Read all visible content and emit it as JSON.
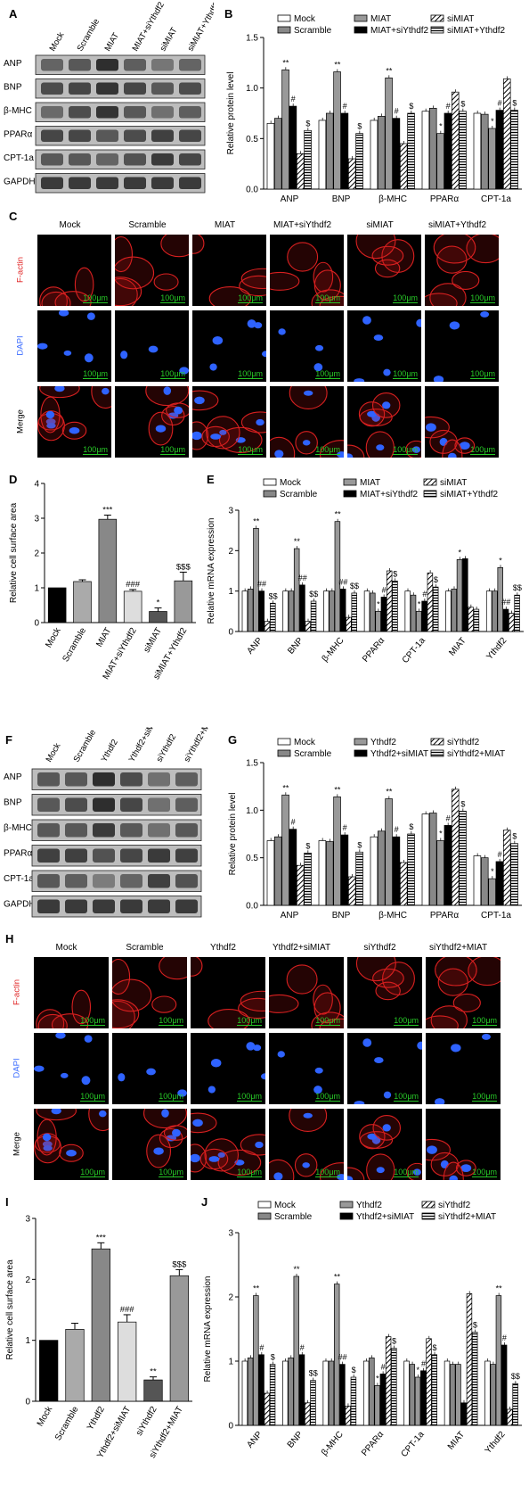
{
  "panels": {
    "A": "A",
    "B": "B",
    "C": "C",
    "D": "D",
    "E": "E",
    "F": "F",
    "G": "G",
    "H": "H",
    "I": "I",
    "J": "J"
  },
  "colors": {
    "f_actin": "#e02020",
    "dapi": "#3a6bff",
    "scalebar": "#27c927"
  },
  "row_labels": {
    "factin": "F-actin",
    "dapi": "DAPI",
    "merge": "Merge"
  },
  "scalebar_text": "100μm",
  "blotA": {
    "lanes": [
      "Mock",
      "Scramble",
      "MIAT",
      "MIAT+siYthdf2",
      "siMIAT",
      "siMIAT+Ythdf2"
    ],
    "proteins": [
      "ANP",
      "BNP",
      "β-MHC",
      "PPARα",
      "CPT-1a",
      "GAPDH"
    ]
  },
  "blotF": {
    "lanes": [
      "Mock",
      "Scramble",
      "Ythdf2",
      "Ythdf2+siMIAT",
      "siYthdf2",
      "siYthdf2+MIAT"
    ],
    "proteins": [
      "ANP",
      "BNP",
      "β-MHC",
      "PPARα",
      "CPT-1a",
      "GAPDH"
    ]
  },
  "microC": {
    "columns": [
      "Mock",
      "Scramble",
      "MIAT",
      "MIAT+siYthdf2",
      "siMIAT",
      "siMIAT+Ythdf2"
    ]
  },
  "microH": {
    "columns": [
      "Mock",
      "Scramble",
      "Ythdf2",
      "Ythdf2+siMIAT",
      "siYthdf2",
      "siYthdf2+MIAT"
    ]
  },
  "chart_data": [
    {
      "id": "B",
      "type": "bar",
      "ylabel": "Relative protein level",
      "ylim": [
        0,
        1.5
      ],
      "yticks": [
        "0.0",
        "0.5",
        "1.0",
        "1.5"
      ],
      "categories": [
        "ANP",
        "BNP",
        "β-MHC",
        "PPARα",
        "CPT-1a"
      ],
      "legend": [
        "Mock",
        "Scramble",
        "MIAT",
        "MIAT+siYthdf2",
        "siMIAT",
        "siMIAT+Ythdf2"
      ],
      "series": [
        {
          "name": "Mock",
          "values": [
            0.65,
            0.68,
            0.68,
            0.77,
            0.75
          ]
        },
        {
          "name": "Scramble",
          "values": [
            0.7,
            0.75,
            0.72,
            0.8,
            0.74
          ]
        },
        {
          "name": "MIAT",
          "values": [
            1.18,
            1.16,
            1.1,
            0.55,
            0.6
          ]
        },
        {
          "name": "MIAT+siYthdf2",
          "values": [
            0.82,
            0.75,
            0.7,
            0.75,
            0.78
          ]
        },
        {
          "name": "siMIAT",
          "values": [
            0.35,
            0.3,
            0.45,
            0.96,
            1.09
          ]
        },
        {
          "name": "siMIAT+Ythdf2",
          "values": [
            0.58,
            0.55,
            0.75,
            0.77,
            0.78
          ]
        }
      ],
      "sig": [
        [
          "**",
          "#",
          "$"
        ],
        [
          "**",
          "#",
          "$"
        ],
        [
          "**",
          "#",
          "$"
        ],
        [
          "*",
          "#",
          "$"
        ],
        [
          "*",
          "#",
          "$"
        ]
      ]
    },
    {
      "id": "D",
      "type": "bar",
      "ylabel": "Relative cell surface area",
      "ylim": [
        0,
        4
      ],
      "yticks": [
        "0",
        "1",
        "2",
        "3",
        "4"
      ],
      "categories": [
        "Mock",
        "Scramble",
        "MIAT",
        "MIAT+siYthdf2",
        "siMIAT",
        "siMIAT+Ythdf2"
      ],
      "values": [
        1.0,
        1.18,
        2.97,
        0.9,
        0.32,
        1.2
      ],
      "errors": [
        0.0,
        0.05,
        0.12,
        0.05,
        0.1,
        0.25
      ],
      "sig": [
        "",
        "",
        "***",
        "###",
        "*",
        "$$$"
      ]
    },
    {
      "id": "E",
      "type": "bar",
      "ylabel": "Relative mRNA expression",
      "ylim": [
        0,
        3
      ],
      "yticks": [
        "0",
        "1",
        "2",
        "3"
      ],
      "categories": [
        "ANP",
        "BNP",
        "β-MHC",
        "PPARα",
        "CPT-1a",
        "MIAT",
        "Ythdf2"
      ],
      "legend": [
        "Mock",
        "Scramble",
        "MIAT",
        "MIAT+siYthdf2",
        "siMIAT",
        "siMIAT+Ythdf2"
      ],
      "series": [
        {
          "name": "Mock",
          "values": [
            1.0,
            1.0,
            1.0,
            1.0,
            1.0,
            1.0,
            1.0
          ]
        },
        {
          "name": "Scramble",
          "values": [
            1.05,
            1.0,
            1.0,
            0.95,
            0.9,
            1.05,
            1.0
          ]
        },
        {
          "name": "MIAT",
          "values": [
            2.55,
            2.05,
            2.72,
            0.5,
            0.5,
            1.78,
            1.58
          ]
        },
        {
          "name": "MIAT+siYthdf2",
          "values": [
            1.0,
            1.15,
            1.05,
            0.85,
            0.75,
            1.8,
            0.55
          ]
        },
        {
          "name": "siMIAT",
          "values": [
            0.25,
            0.25,
            0.35,
            1.5,
            1.45,
            0.6,
            0.45
          ]
        },
        {
          "name": "siMIAT+Ythdf2",
          "values": [
            0.7,
            0.75,
            0.95,
            1.25,
            1.1,
            0.55,
            0.9
          ]
        }
      ],
      "sig": [
        [
          "**",
          "##",
          "$$"
        ],
        [
          "**",
          "##",
          "$$"
        ],
        [
          "**",
          "##",
          "$$"
        ],
        [
          "*",
          "#",
          "$"
        ],
        [
          "*",
          "#",
          "$"
        ],
        [
          "*",
          "",
          ""
        ],
        [
          "*",
          "##",
          "$$"
        ]
      ]
    },
    {
      "id": "G",
      "type": "bar",
      "ylabel": "Relative protein level",
      "ylim": [
        0,
        1.5
      ],
      "yticks": [
        "0.0",
        "0.5",
        "1.0",
        "1.5"
      ],
      "categories": [
        "ANP",
        "BNP",
        "β-MHC",
        "PPARα",
        "CPT-1a"
      ],
      "legend": [
        "Mock",
        "Scramble",
        "Ythdf2",
        "Ythdf2+siMIAT",
        "siYthdf2",
        "siYthdf2+MIAT"
      ],
      "series": [
        {
          "name": "Mock",
          "values": [
            0.68,
            0.68,
            0.72,
            0.96,
            0.52
          ]
        },
        {
          "name": "Scramble",
          "values": [
            0.72,
            0.67,
            0.78,
            0.97,
            0.5
          ]
        },
        {
          "name": "Ythdf2",
          "values": [
            1.16,
            1.14,
            1.12,
            0.68,
            0.28
          ]
        },
        {
          "name": "Ythdf2+siMIAT",
          "values": [
            0.8,
            0.74,
            0.72,
            0.84,
            0.46
          ]
        },
        {
          "name": "siYthdf2",
          "values": [
            0.42,
            0.3,
            0.45,
            1.22,
            0.79
          ]
        },
        {
          "name": "siYthdf2+MIAT",
          "values": [
            0.55,
            0.56,
            0.75,
            0.99,
            0.65
          ]
        }
      ],
      "sig": [
        [
          "**",
          "#",
          "$"
        ],
        [
          "**",
          "#",
          "$"
        ],
        [
          "**",
          "#",
          "$"
        ],
        [
          "*",
          "#",
          "$"
        ],
        [
          "*",
          "#",
          "$"
        ]
      ]
    },
    {
      "id": "I",
      "type": "bar",
      "ylabel": "Relative cell surface area",
      "ylim": [
        0,
        3
      ],
      "yticks": [
        "0",
        "1",
        "2",
        "3"
      ],
      "categories": [
        "Mock",
        "Scramble",
        "Ythdf2",
        "Ythdf2+siMIAT",
        "siYthdf2",
        "siYthdf2+MIAT"
      ],
      "values": [
        1.0,
        1.18,
        2.5,
        1.3,
        0.35,
        2.06
      ],
      "errors": [
        0.0,
        0.1,
        0.1,
        0.12,
        0.05,
        0.1
      ],
      "sig": [
        "",
        "",
        "***",
        "###",
        "**",
        "$$$"
      ]
    },
    {
      "id": "J",
      "type": "bar",
      "ylabel": "Relative mRNA expression",
      "ylim": [
        0,
        3
      ],
      "yticks": [
        "0",
        "1",
        "2",
        "3"
      ],
      "categories": [
        "ANP",
        "BNP",
        "β-MHC",
        "PPARα",
        "CPT-1a",
        "MIAT",
        "Ythdf2"
      ],
      "legend": [
        "Mock",
        "Scramble",
        "Ythdf2",
        "Ythdf2+siMIAT",
        "siYthdf2",
        "siYthdf2+MIAT"
      ],
      "series": [
        {
          "name": "Mock",
          "values": [
            1.0,
            1.0,
            1.0,
            1.0,
            1.0,
            1.0,
            1.0
          ]
        },
        {
          "name": "Scramble",
          "values": [
            1.05,
            1.05,
            1.0,
            1.05,
            0.95,
            0.95,
            0.95
          ]
        },
        {
          "name": "Ythdf2",
          "values": [
            2.02,
            2.32,
            2.2,
            0.62,
            0.75,
            0.95,
            2.02
          ]
        },
        {
          "name": "Ythdf2+siMIAT",
          "values": [
            1.1,
            1.1,
            0.95,
            0.8,
            0.85,
            0.35,
            1.25
          ]
        },
        {
          "name": "siYthdf2",
          "values": [
            0.5,
            0.35,
            0.3,
            1.38,
            1.35,
            2.05,
            0.25
          ]
        },
        {
          "name": "siYthdf2+MIAT",
          "values": [
            0.95,
            0.7,
            0.75,
            1.2,
            1.1,
            1.45,
            0.65
          ]
        }
      ],
      "sig": [
        [
          "**",
          "#",
          "$"
        ],
        [
          "**",
          "#",
          "$$"
        ],
        [
          "**",
          "##",
          "$"
        ],
        [
          "*",
          "#",
          "$"
        ],
        [
          "*",
          "#",
          "$"
        ],
        [
          "",
          "",
          "$"
        ],
        [
          "**",
          "#",
          "$$"
        ]
      ]
    }
  ]
}
